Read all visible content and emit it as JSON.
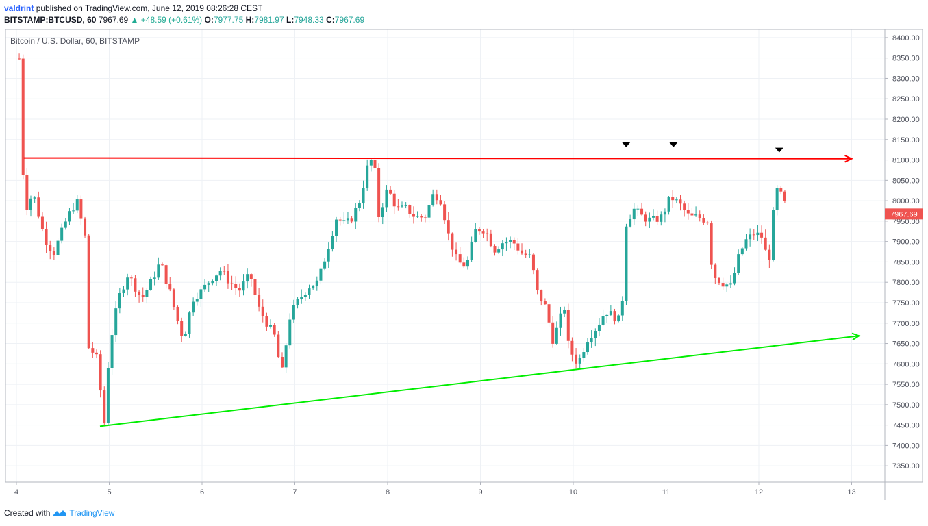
{
  "header": {
    "user": "valdrint",
    "published_text": "published on TradingView.com, June 12, 2019 08:26:28 CEST",
    "symbol_line": "BITSTAMP:BTCUSD, 60",
    "last": "7967.69",
    "change": "+48.59 (+0.61%)",
    "o_label": "O:",
    "o": "7977.75",
    "h_label": "H:",
    "h": "7981.97",
    "l_label": "L:",
    "l": "7948.33",
    "c_label": "C:",
    "c": "7967.69"
  },
  "footer": {
    "created_with": "Created with",
    "brand": "TradingView",
    "logo_icon": "tradingview-logo-icon"
  },
  "colors": {
    "up": "#26a69a",
    "down": "#ef5350",
    "resistance": "#ff0000",
    "support": "#00ee00",
    "grid": "#eef1f5",
    "marker": "#000000"
  },
  "chart_data": {
    "type": "candlestick",
    "title": "Bitcoin / U.S. Dollar, 60, BITSTAMP",
    "x_ticks": [
      "4",
      "5",
      "6",
      "7",
      "8",
      "9",
      "10",
      "11",
      "12",
      "13"
    ],
    "x_range": [
      4,
      13
    ],
    "y_ticks": [
      "8400.00",
      "8350.00",
      "8300.00",
      "8250.00",
      "8200.00",
      "8150.00",
      "8100.00",
      "8050.00",
      "8000.00",
      "7950.00",
      "7900.00",
      "7850.00",
      "7800.00",
      "7750.00",
      "7700.00",
      "7650.00",
      "7600.00",
      "7550.00",
      "7500.00",
      "7450.00",
      "7400.00",
      "7350.00"
    ],
    "ylim": [
      7310,
      8420
    ],
    "last_price_label": "7967.69",
    "lines": [
      {
        "name": "resistance",
        "color": "#ff0000",
        "from": [
          4.08,
          8105
        ],
        "to": [
          13.0,
          8103
        ],
        "arrow": true
      },
      {
        "name": "support",
        "color": "#00ee00",
        "from": [
          4.9,
          7447
        ],
        "to": [
          13.08,
          7669
        ],
        "arrow": true
      }
    ],
    "markers": [
      {
        "x": 10.57,
        "y": 8138
      },
      {
        "x": 11.08,
        "y": 8138
      },
      {
        "x": 12.22,
        "y": 8125
      }
    ],
    "path": [
      [
        4.02,
        8430
      ],
      [
        4.06,
        8105
      ],
      [
        4.1,
        7980
      ],
      [
        4.18,
        8020
      ],
      [
        4.3,
        7910
      ],
      [
        4.4,
        7870
      ],
      [
        4.55,
        7960
      ],
      [
        4.65,
        8000
      ],
      [
        4.75,
        7900
      ],
      [
        4.78,
        7640
      ],
      [
        4.86,
        7620
      ],
      [
        4.95,
        7450
      ],
      [
        5.0,
        7640
      ],
      [
        5.1,
        7760
      ],
      [
        5.2,
        7820
      ],
      [
        5.35,
        7760
      ],
      [
        5.45,
        7800
      ],
      [
        5.55,
        7850
      ],
      [
        5.65,
        7780
      ],
      [
        5.72,
        7720
      ],
      [
        5.8,
        7660
      ],
      [
        5.9,
        7760
      ],
      [
        6.0,
        7780
      ],
      [
        6.1,
        7810
      ],
      [
        6.2,
        7830
      ],
      [
        6.3,
        7800
      ],
      [
        6.4,
        7780
      ],
      [
        6.52,
        7820
      ],
      [
        6.6,
        7740
      ],
      [
        6.7,
        7700
      ],
      [
        6.8,
        7660
      ],
      [
        6.85,
        7560
      ],
      [
        6.95,
        7720
      ],
      [
        7.05,
        7760
      ],
      [
        7.15,
        7790
      ],
      [
        7.25,
        7800
      ],
      [
        7.35,
        7880
      ],
      [
        7.45,
        7960
      ],
      [
        7.55,
        7940
      ],
      [
        7.62,
        7960
      ],
      [
        7.7,
        8000
      ],
      [
        7.78,
        8080
      ],
      [
        7.85,
        8110
      ],
      [
        7.9,
        7960
      ],
      [
        8.0,
        8030
      ],
      [
        8.1,
        7980
      ],
      [
        8.2,
        7980
      ],
      [
        8.3,
        7960
      ],
      [
        8.4,
        7960
      ],
      [
        8.5,
        8020
      ],
      [
        8.58,
        8000
      ],
      [
        8.65,
        7920
      ],
      [
        8.75,
        7850
      ],
      [
        8.85,
        7840
      ],
      [
        8.95,
        7930
      ],
      [
        9.05,
        7930
      ],
      [
        9.15,
        7880
      ],
      [
        9.25,
        7900
      ],
      [
        9.35,
        7900
      ],
      [
        9.45,
        7870
      ],
      [
        9.55,
        7860
      ],
      [
        9.6,
        7780
      ],
      [
        9.7,
        7740
      ],
      [
        9.78,
        7660
      ],
      [
        9.85,
        7700
      ],
      [
        9.9,
        7750
      ],
      [
        9.95,
        7640
      ],
      [
        10.0,
        7620
      ],
      [
        10.05,
        7600
      ],
      [
        10.15,
        7660
      ],
      [
        10.25,
        7690
      ],
      [
        10.35,
        7730
      ],
      [
        10.48,
        7710
      ],
      [
        10.52,
        7700
      ],
      [
        10.56,
        7940
      ],
      [
        10.65,
        7980
      ],
      [
        10.75,
        7960
      ],
      [
        10.85,
        7950
      ],
      [
        10.95,
        7960
      ],
      [
        11.05,
        8010
      ],
      [
        11.15,
        7990
      ],
      [
        11.25,
        7960
      ],
      [
        11.35,
        7960
      ],
      [
        11.45,
        7950
      ],
      [
        11.5,
        7820
      ],
      [
        11.6,
        7800
      ],
      [
        11.7,
        7790
      ],
      [
        11.78,
        7860
      ],
      [
        11.85,
        7900
      ],
      [
        11.95,
        7920
      ],
      [
        12.05,
        7910
      ],
      [
        12.1,
        7830
      ],
      [
        12.18,
        8030
      ],
      [
        12.25,
        8010
      ],
      [
        12.32,
        7968
      ]
    ]
  }
}
